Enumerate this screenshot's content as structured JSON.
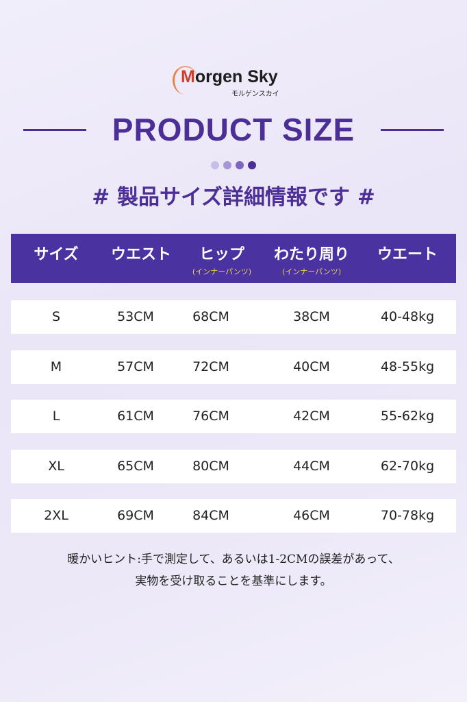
{
  "logo": {
    "brand_prefix": "M",
    "brand_rest": "orgen Sky",
    "subtext": "モルゲンスカイ"
  },
  "title": "PRODUCT SIZE",
  "dot_colors": [
    "#c9bfe6",
    "#a897d6",
    "#7d66c0",
    "#4b2f96"
  ],
  "subtitle": "# 製品サイズ詳細情報です #",
  "colors": {
    "accent": "#4b2f96",
    "header_bg": "#4a33a0",
    "header_note": "#f5d43a"
  },
  "table": {
    "headers": [
      {
        "label": "サイズ"
      },
      {
        "label": "ウエスト"
      },
      {
        "label": "ヒップ",
        "note": "(インナーパンツ)"
      },
      {
        "label": "わたり周り",
        "note": "(インナーパンツ)"
      },
      {
        "label": "ウエート"
      }
    ],
    "rows": [
      [
        "S",
        "53CM",
        "68CM",
        "38CM",
        "40-48kg"
      ],
      [
        "M",
        "57CM",
        "72CM",
        "40CM",
        "48-55kg"
      ],
      [
        "L",
        "61CM",
        "76CM",
        "42CM",
        "55-62kg"
      ],
      [
        "XL",
        "65CM",
        "80CM",
        "44CM",
        "62-70kg"
      ],
      [
        "2XL",
        "69CM",
        "84CM",
        "46CM",
        "70-78kg"
      ]
    ]
  },
  "note": {
    "line1": "暖かいヒント:手で測定して、あるいは1-2CMの誤差があって、",
    "line2": "実物を受け取ることを基準にします。"
  }
}
